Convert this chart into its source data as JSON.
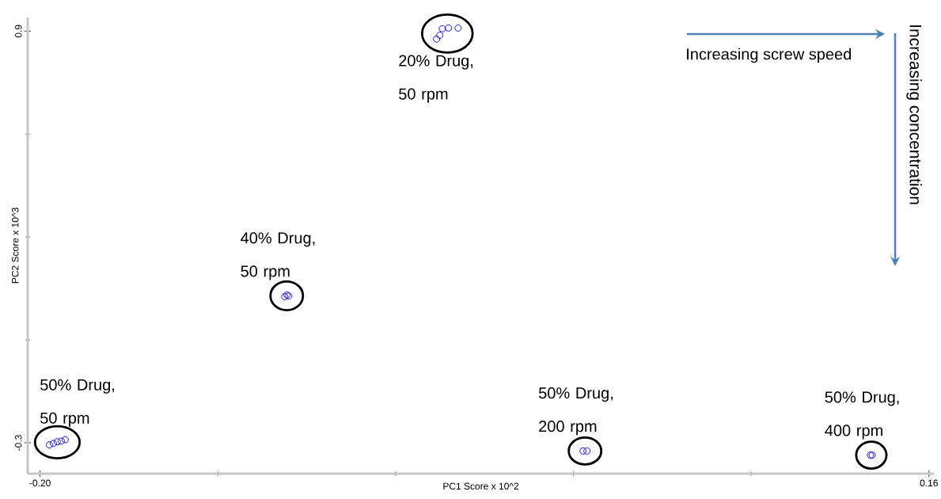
{
  "chart_data": {
    "type": "scatter",
    "xlabel": "PC1 Score x 10^2",
    "ylabel": "PC2 Score x 10^3",
    "xlim": [
      -0.205,
      0.162
    ],
    "ylim": [
      -0.39,
      0.94
    ],
    "xticks": [
      {
        "value": -0.2,
        "label": "-0.20"
      },
      {
        "value": 0.16,
        "label": "0.16"
      }
    ],
    "yticks": [
      -0.3,
      0.9
    ],
    "grid": false,
    "marker": "circle",
    "series": [
      {
        "color": "#0000ff",
        "x": [
          -0.1962,
          -0.1946,
          -0.193,
          -0.1914,
          -0.1898
        ],
        "values": [
          -0.306,
          -0.302,
          -0.297,
          -0.295,
          -0.291
        ]
      },
      {
        "color": "#0000ff",
        "x": [
          -0.1009,
          -0.1,
          -0.0993
        ],
        "values": [
          0.126,
          0.131,
          0.128
        ]
      },
      {
        "color": "#0000ff",
        "x": [
          -0.0394,
          -0.0381,
          -0.0371,
          -0.0346,
          -0.0307
        ],
        "values": [
          0.877,
          0.888,
          0.907,
          0.909,
          0.909
        ]
      },
      {
        "color": "#0000ff",
        "x": [
          0.0199,
          0.0215
        ],
        "values": [
          -0.324,
          -0.324
        ]
      },
      {
        "color": "#0000ff",
        "x": [
          0.1363,
          0.137
        ],
        "values": [
          -0.336,
          -0.336
        ]
      }
    ],
    "annotations": [
      {
        "text": "50% Drug, 50 rpm",
        "x": -0.193,
        "y": -0.3
      },
      {
        "text": "40% Drug, 50 rpm",
        "x": -0.1,
        "y": 0.128
      },
      {
        "text": "20% Drug, 50 rpm",
        "x": -0.036,
        "y": 0.9
      },
      {
        "text": "50% Drug, 200 rpm",
        "x": 0.0207,
        "y": -0.324
      },
      {
        "text": "50% Drug, 400 rpm",
        "x": 0.1366,
        "y": -0.336
      },
      "Increasing screw speed",
      "Increasing concentration"
    ]
  }
}
